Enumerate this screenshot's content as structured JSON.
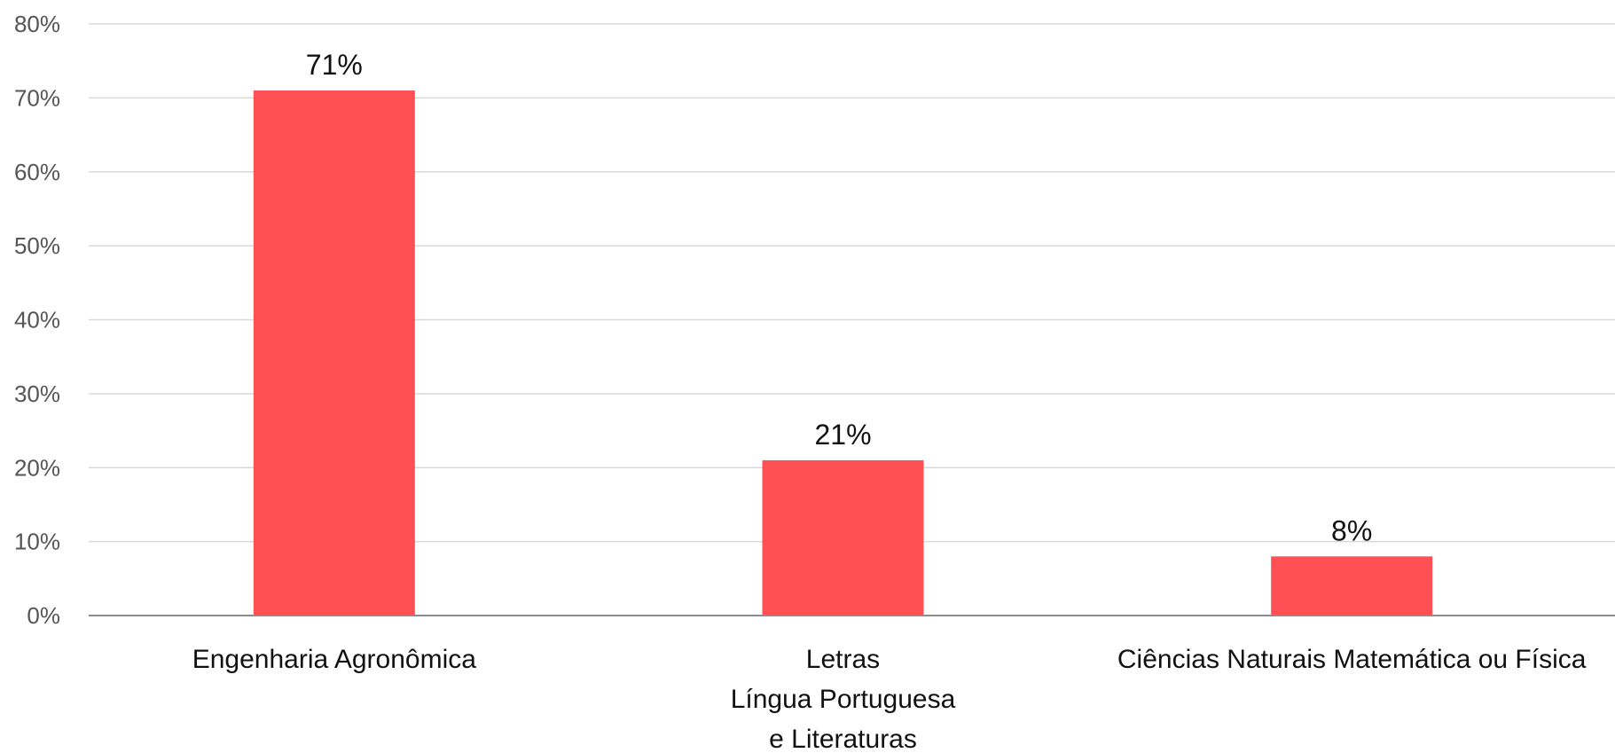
{
  "chart_data": {
    "type": "bar",
    "title": "",
    "xlabel": "",
    "ylabel": "",
    "categories": [
      [
        "Engenharia Agronômica"
      ],
      [
        "Letras",
        "Língua Portuguesa",
        "e Literaturas"
      ],
      [
        "Ciências Naturais Matemática ou Física"
      ]
    ],
    "values": [
      71,
      21,
      8
    ],
    "data_labels": [
      "71%",
      "21%",
      "8%"
    ],
    "ylim": [
      0,
      80
    ],
    "yticks": [
      0,
      10,
      20,
      30,
      40,
      50,
      60,
      70,
      80
    ],
    "ytick_labels": [
      "0%",
      "10%",
      "20%",
      "30%",
      "40%",
      "50%",
      "60%",
      "70%",
      "80%"
    ],
    "grid": true,
    "legend": "none",
    "bar_color": "#ff5055",
    "grid_color": "#d9d9d9",
    "axis_color": "#8c8c8c"
  }
}
